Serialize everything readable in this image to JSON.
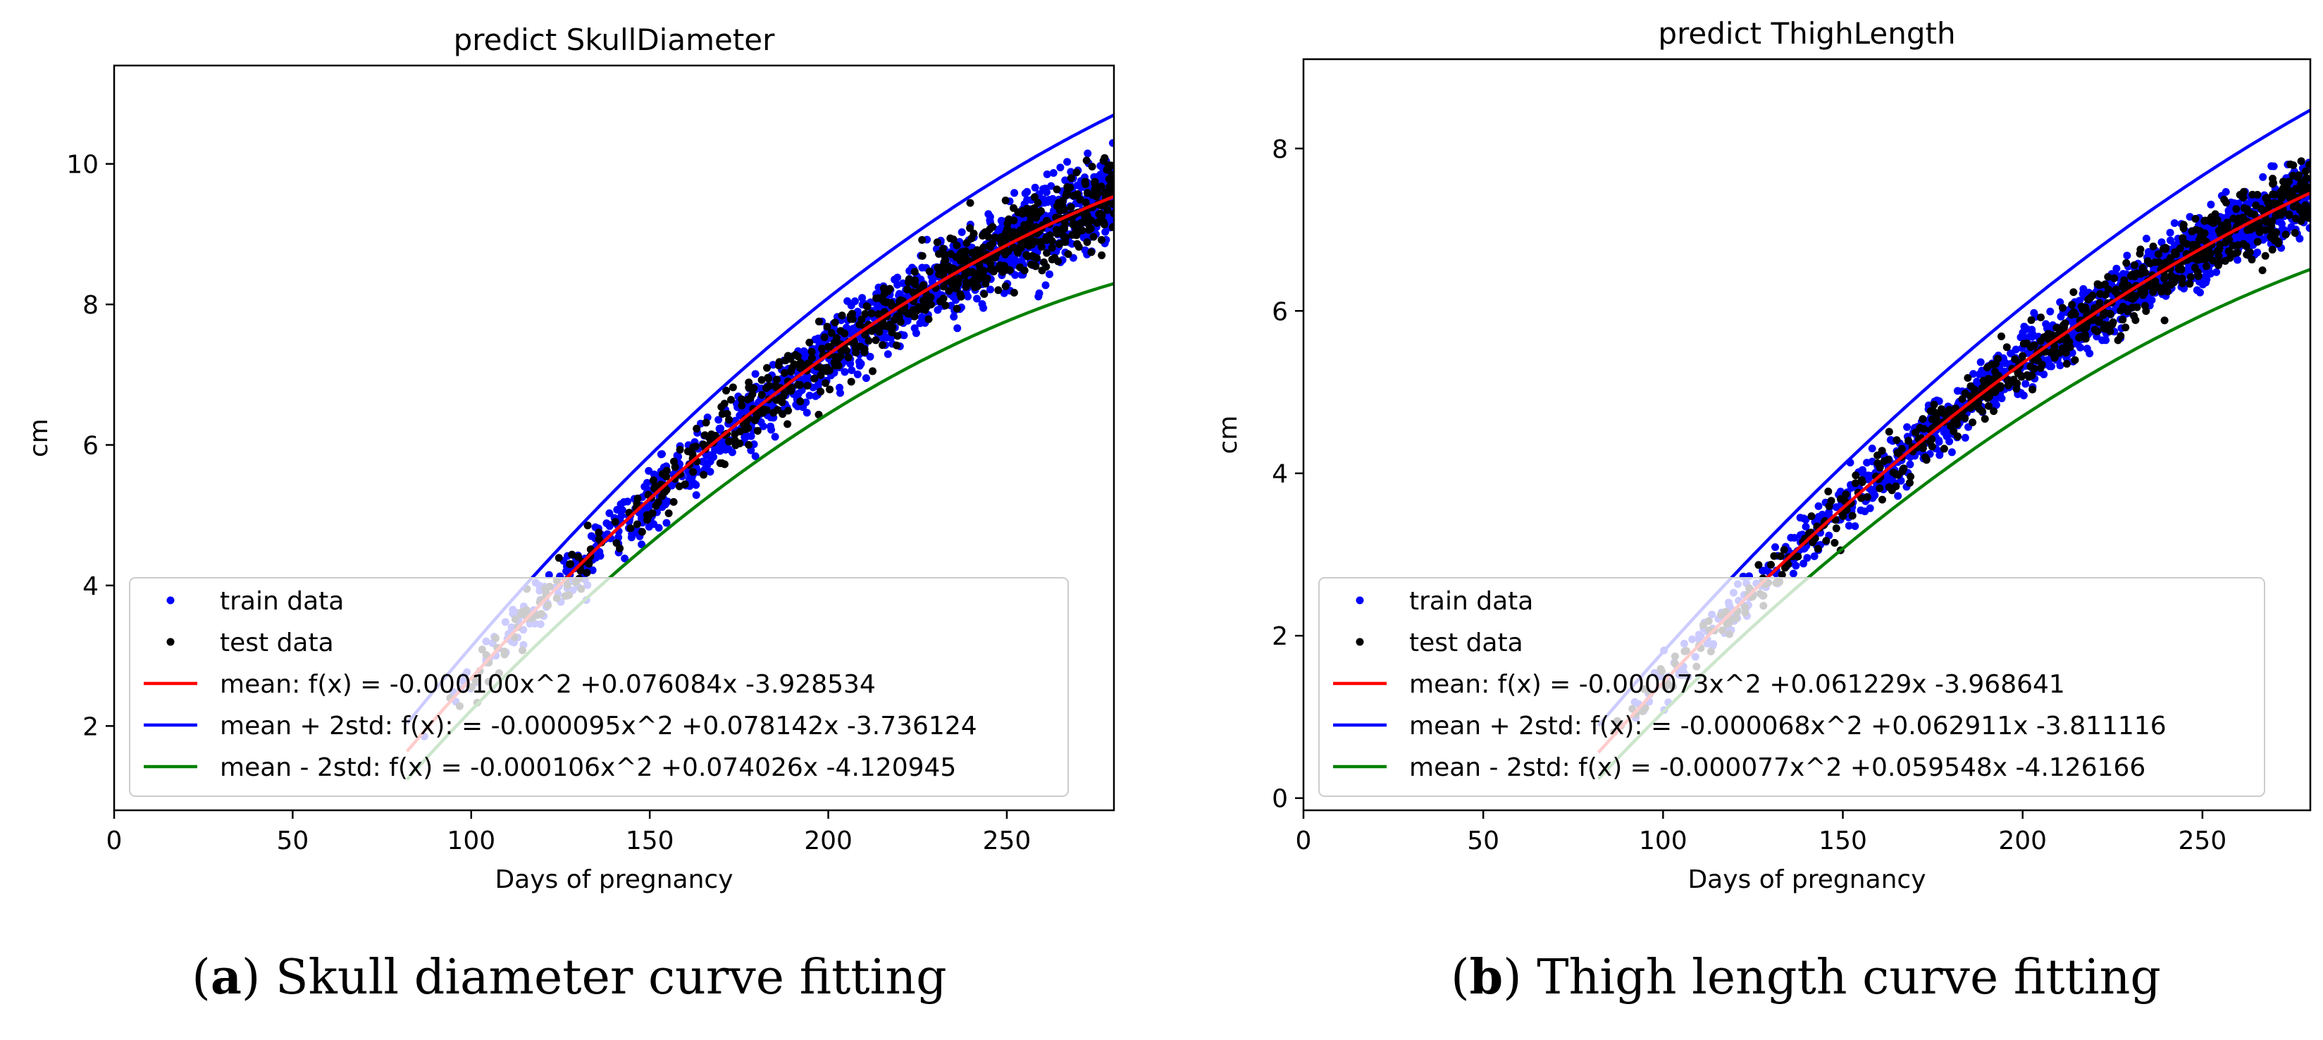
{
  "colors": {
    "train": "#0000ff",
    "test": "#000000",
    "mean": "#ff0000",
    "upper": "#0000ff",
    "lower": "#008000"
  },
  "chart_data": [
    {
      "type": "scatter",
      "title": "predict SkullDiameter",
      "xlabel": "Days of pregnancy",
      "ylabel": "cm",
      "xlim": [
        0,
        280
      ],
      "ylim": [
        0.8,
        11.4
      ],
      "xticks": [
        0,
        50,
        100,
        150,
        200,
        250
      ],
      "yticks": [
        2,
        4,
        6,
        8,
        10
      ],
      "grid": false,
      "legend_position": "lower-right",
      "caption": {
        "label": "a",
        "text": ") Skull diameter curve fitting"
      },
      "scatter_x_range": [
        82,
        280
      ],
      "scatter_std": [
        0.3,
        0.6
      ],
      "series": [
        {
          "name": "train data",
          "kind": "scatter",
          "color_key": "train",
          "count": 1400
        },
        {
          "name": "test data",
          "kind": "scatter",
          "color_key": "test",
          "count": 700
        },
        {
          "name": "mean: f(x) = -0.000100x^2 +0.076084x -3.928534",
          "kind": "line",
          "color_key": "mean",
          "coef": [
            -0.0001,
            0.076084,
            -3.928534
          ]
        },
        {
          "name": "mean + 2std: f(x): = -0.000095x^2 +0.078142x -3.736124",
          "kind": "line",
          "color_key": "upper",
          "coef": [
            -9.5e-05,
            0.078142,
            -3.736124
          ]
        },
        {
          "name": "mean - 2std: f(x) = -0.000106x^2 +0.074026x -4.120945",
          "kind": "line",
          "color_key": "lower",
          "coef": [
            -0.000106,
            0.074026,
            -4.120945
          ]
        }
      ]
    },
    {
      "type": "scatter",
      "title": "predict ThighLength",
      "xlabel": "Days of pregnancy",
      "ylabel": "cm",
      "xlim": [
        0,
        280
      ],
      "ylim": [
        -0.15,
        9.1
      ],
      "xticks": [
        0,
        50,
        100,
        150,
        200,
        250
      ],
      "yticks": [
        0,
        2,
        4,
        6,
        8
      ],
      "grid": false,
      "legend_position": "lower-right",
      "caption": {
        "label": "b",
        "text": ") Thigh length curve fitting"
      },
      "scatter_x_range": [
        82,
        280
      ],
      "scatter_std": [
        0.25,
        0.45
      ],
      "series": [
        {
          "name": "train data",
          "kind": "scatter",
          "color_key": "train",
          "count": 1400
        },
        {
          "name": "test data",
          "kind": "scatter",
          "color_key": "test",
          "count": 700
        },
        {
          "name": "mean: f(x) = -0.000073x^2 +0.061229x -3.968641",
          "kind": "line",
          "color_key": "mean",
          "coef": [
            -7.3e-05,
            0.061229,
            -3.968641
          ]
        },
        {
          "name": "mean + 2std: f(x): = -0.000068x^2 +0.062911x -3.811116",
          "kind": "line",
          "color_key": "upper",
          "coef": [
            -6.8e-05,
            0.062911,
            -3.811116
          ]
        },
        {
          "name": "mean - 2std: f(x) = -0.000077x^2 +0.059548x -4.126166",
          "kind": "line",
          "color_key": "lower",
          "coef": [
            -7.7e-05,
            0.059548,
            -4.126166
          ]
        }
      ]
    }
  ]
}
